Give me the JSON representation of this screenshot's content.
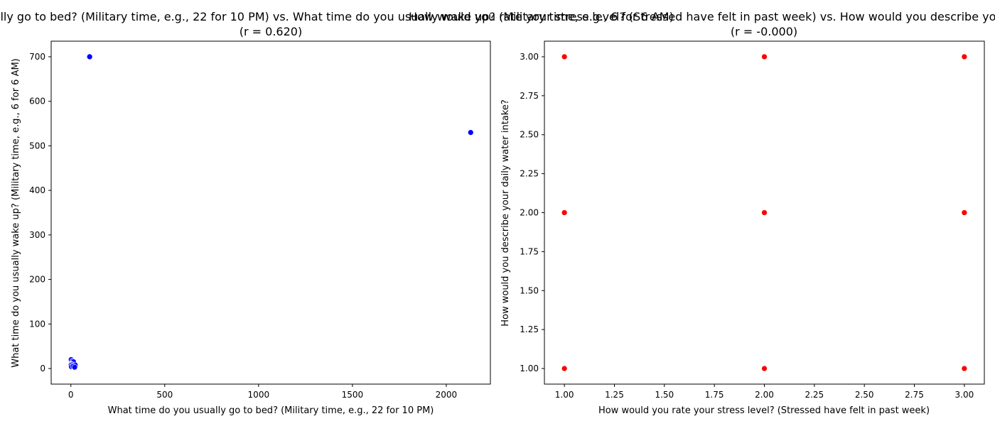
{
  "chart_data": [
    {
      "type": "scatter",
      "title": "What time do you usually go to bed? (Military time, e.g., 22 for 10 PM) vs. What time do you usually wake up? (Military time, e.g., 6 for 6 AM)",
      "subtitle": "(r = 0.620)",
      "xlabel": "What time do you usually go to bed? (Military time, e.g., 22 for 10 PM)",
      "ylabel": "What time do you usually wake up? (Military time, e.g., 6 for 6 AM)",
      "xlim": [
        -105,
        2235
      ],
      "ylim": [
        -35,
        735
      ],
      "xticks": [
        0,
        500,
        1000,
        1500,
        2000
      ],
      "xtick_labels": [
        "0",
        "500",
        "1000",
        "1500",
        "2000"
      ],
      "yticks": [
        0,
        100,
        200,
        300,
        400,
        500,
        600,
        700
      ],
      "ytick_labels": [
        "0",
        "100",
        "200",
        "300",
        "400",
        "500",
        "600",
        "700"
      ],
      "grid": false,
      "marker_color": "#0000ff",
      "points": [
        {
          "x": 100,
          "y": 700
        },
        {
          "x": 2130,
          "y": 530
        },
        {
          "x": 2,
          "y": 20
        },
        {
          "x": 10,
          "y": 17
        },
        {
          "x": 14,
          "y": 15
        },
        {
          "x": 0,
          "y": 10
        },
        {
          "x": 2,
          "y": 10
        },
        {
          "x": 5,
          "y": 9
        },
        {
          "x": 22,
          "y": 7
        },
        {
          "x": 24,
          "y": 6
        },
        {
          "x": 23,
          "y": 8
        },
        {
          "x": 1,
          "y": 7
        },
        {
          "x": 3,
          "y": 4
        },
        {
          "x": 12,
          "y": 5
        },
        {
          "x": 20,
          "y": 3
        }
      ]
    },
    {
      "type": "scatter",
      "title": "How would you rate your stress level? (Stressed have felt in past week) vs. How would you describe your daily water intake?",
      "subtitle": "(r = -0.000)",
      "xlabel": "How would you rate your stress level? (Stressed have felt in past week)",
      "ylabel": "How would you describe your daily water intake?",
      "xlim": [
        0.9,
        3.1
      ],
      "ylim": [
        0.9,
        3.1
      ],
      "xticks": [
        1.0,
        1.25,
        1.5,
        1.75,
        2.0,
        2.25,
        2.5,
        2.75,
        3.0
      ],
      "xtick_labels": [
        "1.00",
        "1.25",
        "1.50",
        "1.75",
        "2.00",
        "2.25",
        "2.50",
        "2.75",
        "3.00"
      ],
      "yticks": [
        1.0,
        1.25,
        1.5,
        1.75,
        2.0,
        2.25,
        2.5,
        2.75,
        3.0
      ],
      "ytick_labels": [
        "1.00",
        "1.25",
        "1.50",
        "1.75",
        "2.00",
        "2.25",
        "2.50",
        "2.75",
        "3.00"
      ],
      "grid": false,
      "marker_color": "#ff0000",
      "points": [
        {
          "x": 1,
          "y": 1
        },
        {
          "x": 1,
          "y": 2
        },
        {
          "x": 1,
          "y": 3
        },
        {
          "x": 2,
          "y": 1
        },
        {
          "x": 2,
          "y": 2
        },
        {
          "x": 2,
          "y": 3
        },
        {
          "x": 3,
          "y": 1
        },
        {
          "x": 3,
          "y": 2
        },
        {
          "x": 3,
          "y": 3
        }
      ]
    }
  ]
}
